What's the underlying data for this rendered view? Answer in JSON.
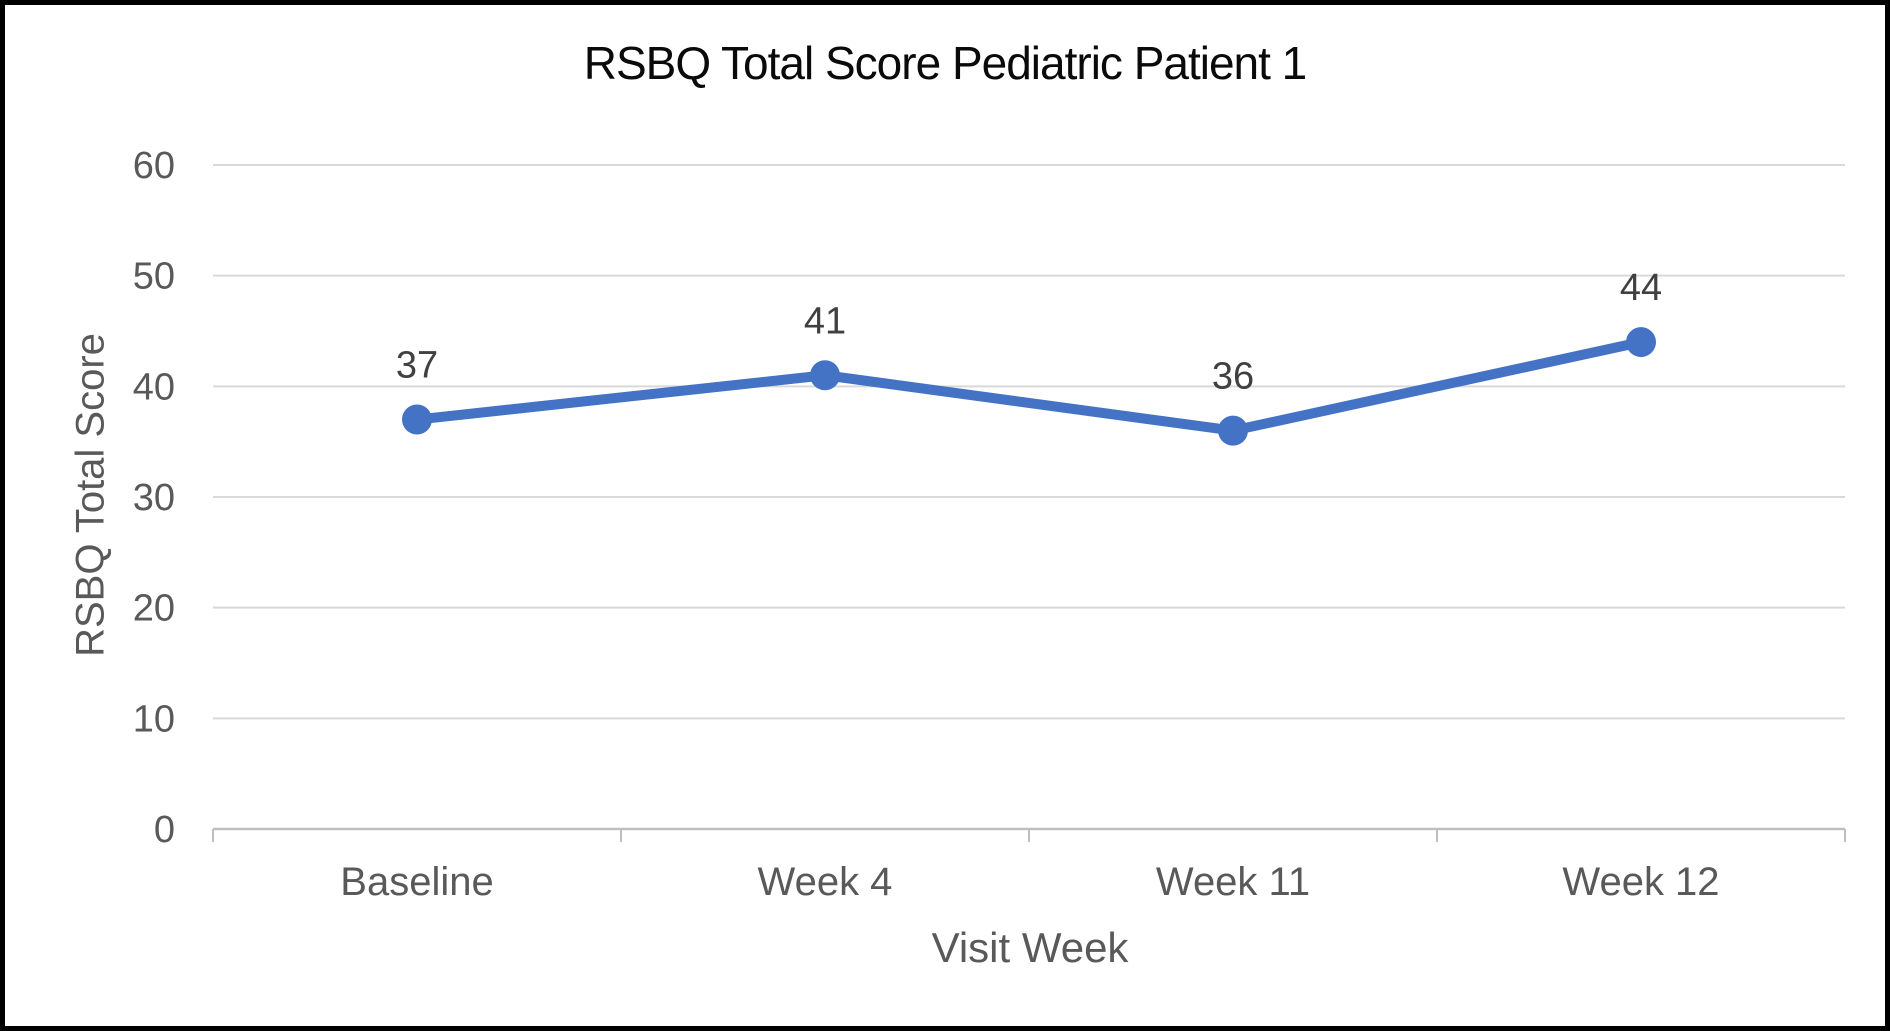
{
  "title": "RSBQ Total Score Pediatric Patient 1",
  "chart_data": {
    "type": "line",
    "title": "RSBQ Total Score Pediatric Patient 1",
    "categories": [
      "Baseline",
      "Week 4",
      "Week 11",
      "Week 12"
    ],
    "series": [
      {
        "name": "RSBQ Total Score",
        "values": [
          37,
          41,
          36,
          44
        ],
        "data_labels": [
          "37",
          "41",
          "36",
          "44"
        ]
      }
    ],
    "xlabel": "Visit Week",
    "ylabel": "RSBQ Total Score",
    "ylim": [
      0,
      60
    ],
    "yticks": [
      0,
      10,
      20,
      30,
      40,
      50,
      60
    ],
    "grid": "horizontal",
    "legend_position": "none",
    "colors": {
      "series": "#4472C4",
      "gridline": "#D9D9D9",
      "axis_line": "#BFBFBF",
      "tick_label": "#595959",
      "axis_title": "#595959",
      "data_label": "#404040",
      "title": "#0a0a0a",
      "background": "#ffffff",
      "frame_border": "#000000"
    }
  }
}
